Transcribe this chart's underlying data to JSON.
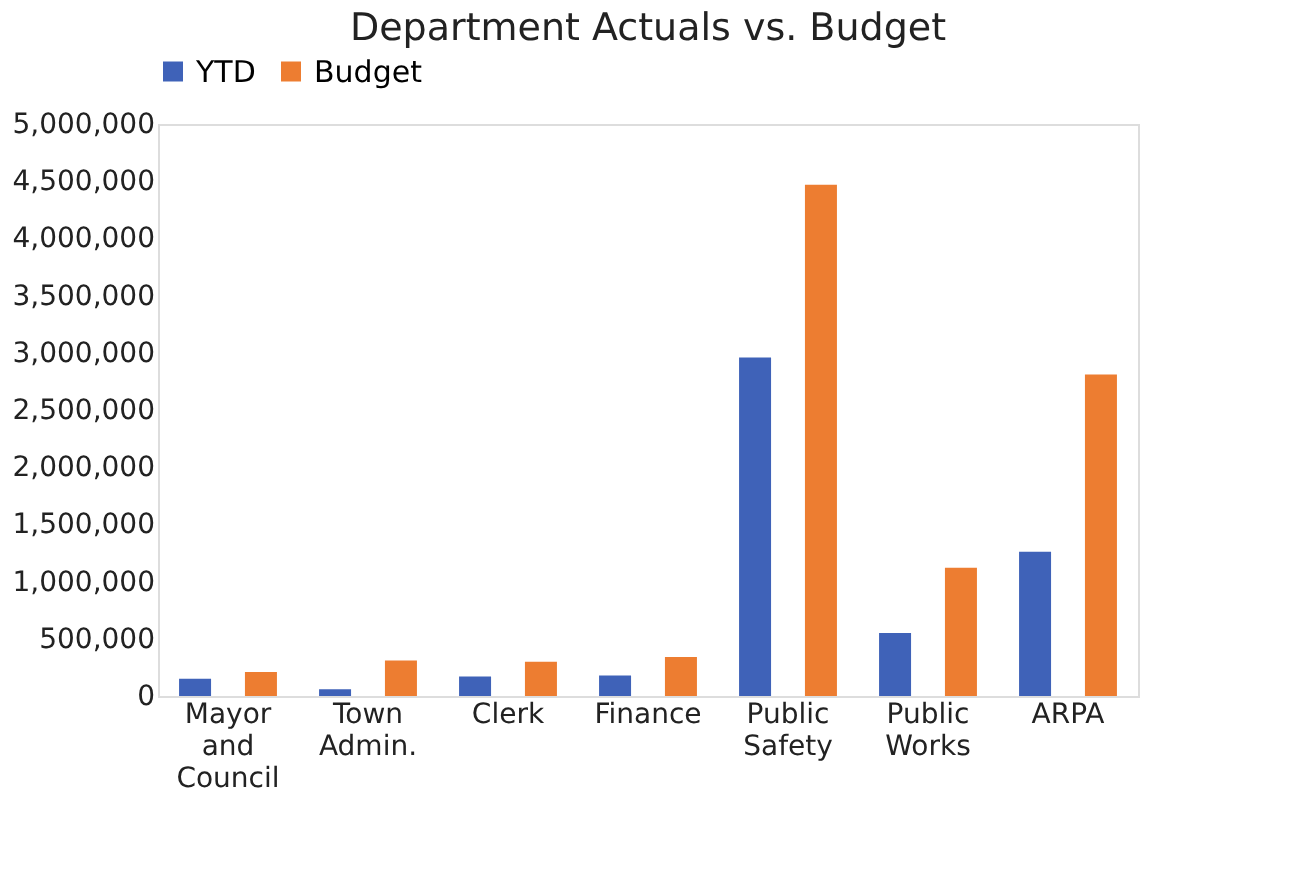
{
  "chart_data": {
    "type": "bar",
    "title": "Department Actuals vs. Budget",
    "categories": [
      "Mayor and Council",
      "Town Admin.",
      "Clerk",
      "Finance",
      "Public Safety",
      "Public Works",
      "ARPA"
    ],
    "series": [
      {
        "name": "YTD",
        "color": "#3f62b8",
        "values": [
          150000,
          60000,
          170000,
          180000,
          2960000,
          550000,
          1260000
        ]
      },
      {
        "name": "Budget",
        "color": "#ed7d31",
        "values": [
          210000,
          310000,
          300000,
          340000,
          4470000,
          1120000,
          2810000
        ]
      }
    ],
    "ylim": [
      0,
      5000000
    ],
    "yticks": [
      {
        "value": 0,
        "label": "0"
      },
      {
        "value": 500000,
        "label": "500,000"
      },
      {
        "value": 1000000,
        "label": "1,000,000"
      },
      {
        "value": 1500000,
        "label": "1,500,000"
      },
      {
        "value": 2000000,
        "label": "2,000,000"
      },
      {
        "value": 2500000,
        "label": "2,500,000"
      },
      {
        "value": 3000000,
        "label": "3,000,000"
      },
      {
        "value": 3500000,
        "label": "3,500,000"
      },
      {
        "value": 4000000,
        "label": "4,000,000"
      },
      {
        "value": 4500000,
        "label": "4,500,000"
      },
      {
        "value": 5000000,
        "label": "5,000,000"
      }
    ],
    "grid": false,
    "legend": "top"
  }
}
